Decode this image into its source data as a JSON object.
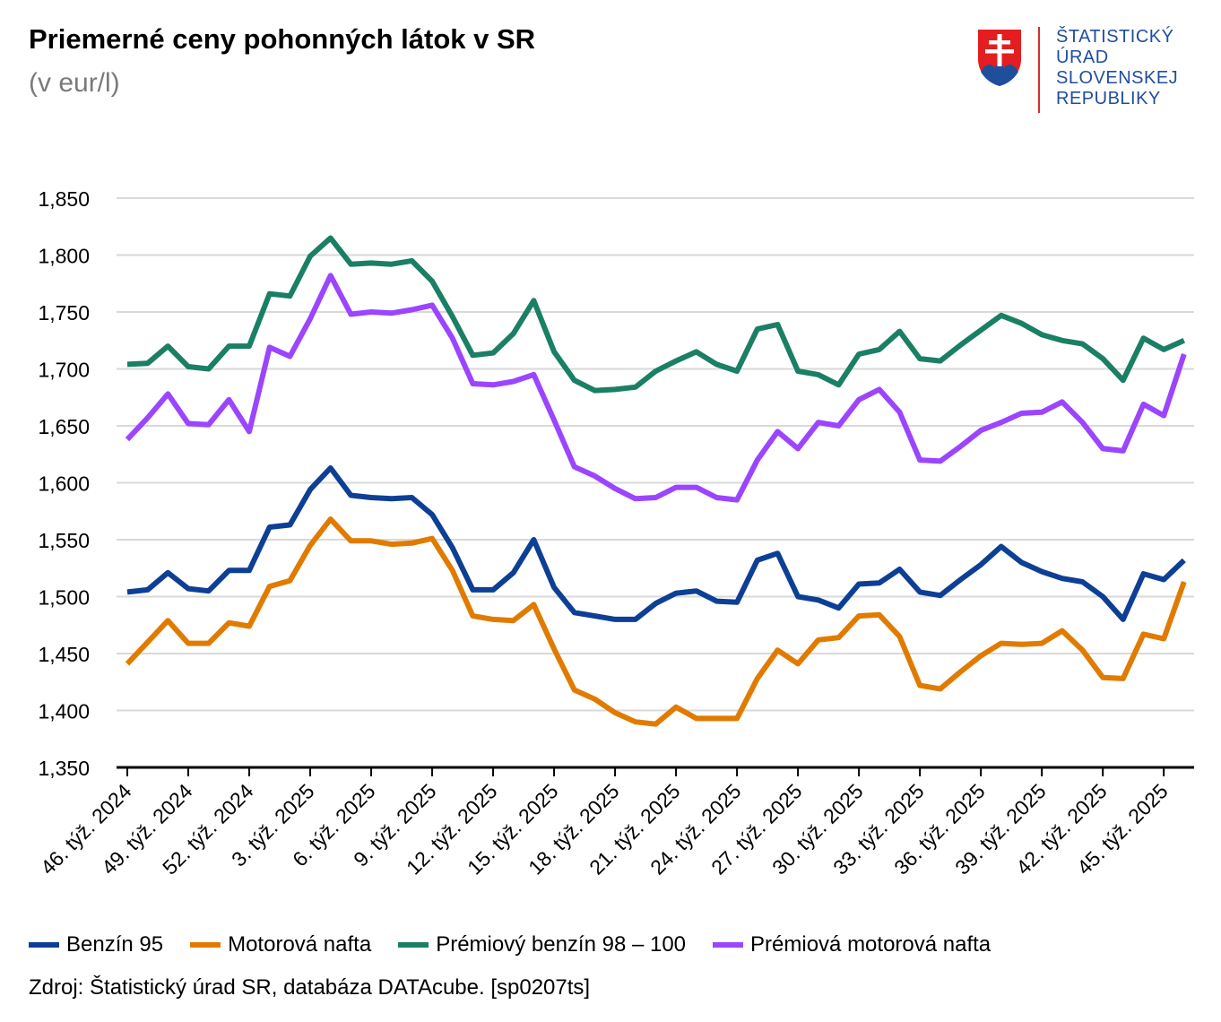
{
  "header": {
    "title": "Priemerné ceny pohonných látok v SR",
    "subtitle": "(v eur/l)"
  },
  "logo": {
    "icon": "slovak-coat-of-arms-icon",
    "lines": [
      "ŠTATISTICKÝ",
      "ÚRAD",
      "SLOVENSKEJ",
      "REPUBLIKY"
    ]
  },
  "source": "Zdroj: Štatistický úrad SR, databáza DATAcube. [sp0207ts]",
  "chart_data": {
    "type": "line",
    "title": "Priemerné ceny pohonných látok v SR",
    "subtitle": "(v eur/l)",
    "xlabel": "",
    "ylabel": "",
    "ylim": [
      1.35,
      1.85
    ],
    "yticks": [
      1.35,
      1.4,
      1.45,
      1.5,
      1.55,
      1.6,
      1.65,
      1.7,
      1.75,
      1.8,
      1.85
    ],
    "ytick_labels": [
      "1,350",
      "1,400",
      "1,450",
      "1,500",
      "1,550",
      "1,600",
      "1,650",
      "1,700",
      "1,750",
      "1,800",
      "1,850"
    ],
    "grid": true,
    "legend_position": "bottom",
    "x": [
      "46. týž. 2024",
      "47. týž. 2024",
      "48. týž. 2024",
      "49. týž. 2024",
      "50. týž. 2024",
      "51. týž. 2024",
      "52. týž. 2024",
      "1. týž. 2025",
      "2. týž. 2025",
      "3. týž. 2025",
      "4. týž. 2025",
      "5. týž. 2025",
      "6. týž. 2025",
      "7. týž. 2025",
      "8. týž. 2025",
      "9. týž. 2025",
      "10. týž. 2025",
      "11. týž. 2025",
      "12. týž. 2025",
      "13. týž. 2025",
      "14. týž. 2025",
      "15. týž. 2025",
      "16. týž. 2025",
      "17. týž. 2025",
      "18. týž. 2025",
      "19. týž. 2025",
      "20. týž. 2025",
      "21. týž. 2025",
      "22. týž. 2025",
      "23. týž. 2025",
      "24. týž. 2025",
      "25. týž. 2025",
      "26. týž. 2025",
      "27. týž. 2025",
      "28. týž. 2025",
      "29. týž. 2025",
      "30. týž. 2025",
      "31. týž. 2025",
      "32. týž. 2025",
      "33. týž. 2025",
      "34. týž. 2025",
      "35. týž. 2025",
      "36. týž. 2025",
      "37. týž. 2025",
      "38. týž. 2025",
      "39. týž. 2025",
      "40. týž. 2025",
      "41. týž. 2025",
      "42. týž. 2025",
      "43. týž. 2025",
      "44. týž. 2025",
      "45. týž. 2025",
      "46. týž. 2025"
    ],
    "xtick_labels": [
      "46. týž. 2024",
      "49. týž. 2024",
      "52. týž. 2024",
      "3. týž. 2025",
      "6. týž. 2025",
      "9. týž. 2025",
      "12. týž. 2025",
      "15. týž. 2025",
      "18. týž. 2025",
      "21. týž. 2025",
      "24. týž. 2025",
      "27. týž. 2025",
      "30. týž. 2025",
      "33. týž. 2025",
      "36. týž. 2025",
      "39. týž. 2025",
      "42. týž. 2025",
      "45. týž. 2025"
    ],
    "series": [
      {
        "name": "Benzín 95",
        "color": "#0d3f95",
        "values": [
          1.504,
          1.506,
          1.521,
          1.507,
          1.505,
          1.523,
          1.523,
          1.561,
          1.563,
          1.594,
          1.613,
          1.589,
          1.587,
          1.586,
          1.587,
          1.572,
          1.543,
          1.506,
          1.506,
          1.521,
          1.55,
          1.508,
          1.486,
          1.483,
          1.48,
          1.48,
          1.494,
          1.503,
          1.505,
          1.496,
          1.495,
          1.532,
          1.538,
          1.5,
          1.497,
          1.49,
          1.511,
          1.512,
          1.524,
          1.504,
          1.501,
          1.515,
          1.528,
          1.544,
          1.53,
          1.522,
          1.516,
          1.513,
          1.5,
          1.48,
          1.52,
          1.515,
          1.532
        ]
      },
      {
        "name": "Motorová nafta",
        "color": "#e07b00",
        "values": [
          1.441,
          1.46,
          1.479,
          1.459,
          1.459,
          1.477,
          1.474,
          1.509,
          1.514,
          1.545,
          1.568,
          1.549,
          1.549,
          1.546,
          1.547,
          1.551,
          1.523,
          1.483,
          1.48,
          1.479,
          1.493,
          1.454,
          1.418,
          1.41,
          1.398,
          1.39,
          1.388,
          1.403,
          1.393,
          1.393,
          1.393,
          1.428,
          1.453,
          1.441,
          1.462,
          1.464,
          1.483,
          1.484,
          1.465,
          1.422,
          1.419,
          1.434,
          1.448,
          1.459,
          1.458,
          1.459,
          1.47,
          1.453,
          1.429,
          1.428,
          1.467,
          1.463,
          1.513
        ]
      },
      {
        "name": "Prémiový benzín 98 – 100",
        "color": "#1a7f64",
        "values": [
          1.704,
          1.705,
          1.72,
          1.702,
          1.7,
          1.72,
          1.72,
          1.766,
          1.764,
          1.799,
          1.815,
          1.792,
          1.793,
          1.792,
          1.795,
          1.777,
          1.746,
          1.712,
          1.714,
          1.731,
          1.76,
          1.715,
          1.69,
          1.681,
          1.682,
          1.684,
          1.698,
          1.707,
          1.715,
          1.704,
          1.698,
          1.735,
          1.739,
          1.698,
          1.695,
          1.686,
          1.713,
          1.717,
          1.733,
          1.709,
          1.707,
          1.721,
          1.734,
          1.747,
          1.74,
          1.73,
          1.725,
          1.722,
          1.709,
          1.69,
          1.727,
          1.717,
          1.725
        ]
      },
      {
        "name": "Prémiová motorová nafta",
        "color": "#9b45ff",
        "values": [
          1.638,
          1.657,
          1.678,
          1.652,
          1.651,
          1.673,
          1.645,
          1.719,
          1.711,
          1.744,
          1.782,
          1.748,
          1.75,
          1.749,
          1.752,
          1.756,
          1.727,
          1.687,
          1.686,
          1.689,
          1.695,
          1.655,
          1.614,
          1.606,
          1.595,
          1.586,
          1.587,
          1.596,
          1.596,
          1.587,
          1.585,
          1.62,
          1.645,
          1.63,
          1.653,
          1.65,
          1.673,
          1.682,
          1.662,
          1.62,
          1.619,
          1.632,
          1.646,
          1.653,
          1.661,
          1.662,
          1.671,
          1.653,
          1.63,
          1.628,
          1.669,
          1.659,
          1.713
        ]
      }
    ]
  }
}
